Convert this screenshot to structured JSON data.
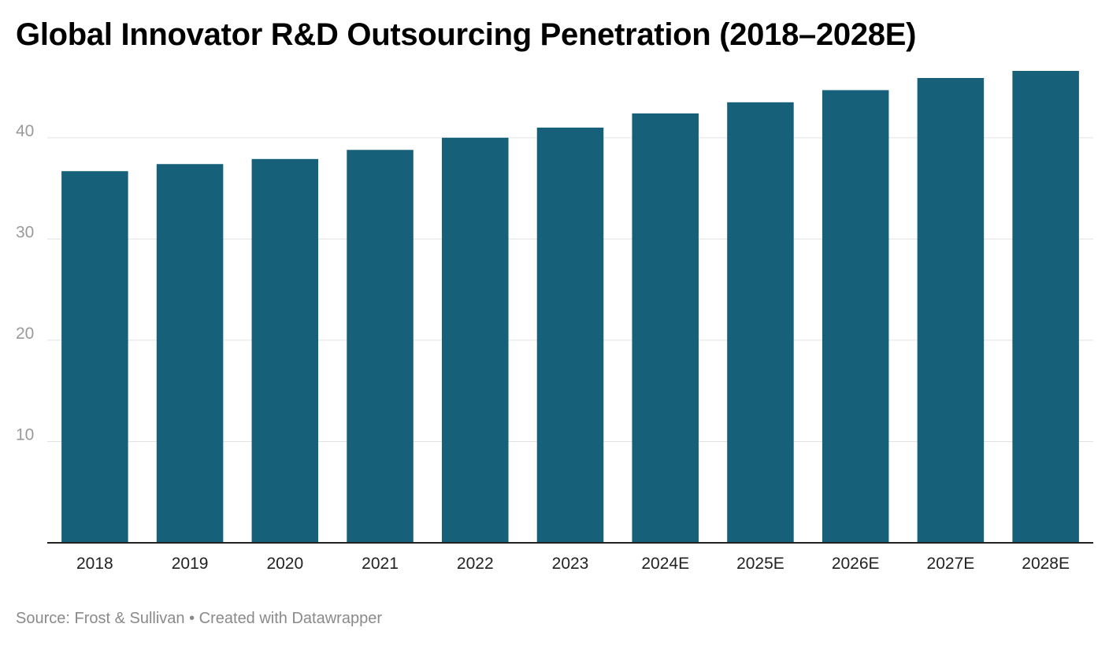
{
  "chart_data": {
    "type": "bar",
    "title": "Global Innovator R&D Outsourcing Penetration (2018–2028E)",
    "xlabel": "",
    "ylabel": "",
    "categories": [
      "2018",
      "2019",
      "2020",
      "2021",
      "2022",
      "2023",
      "2024E",
      "2025E",
      "2026E",
      "2027E",
      "2028E"
    ],
    "values": [
      36.7,
      37.4,
      37.9,
      38.8,
      40.0,
      41.0,
      42.4,
      43.5,
      44.7,
      45.9,
      46.6
    ],
    "ylim": [
      0,
      46.6
    ],
    "yticks": [
      10,
      20,
      30,
      40
    ],
    "grid": true,
    "bar_color": "#17607a"
  },
  "footer": {
    "source_label": "Source: Frost & Sullivan",
    "separator": " • ",
    "credit": "Created with Datawrapper"
  }
}
